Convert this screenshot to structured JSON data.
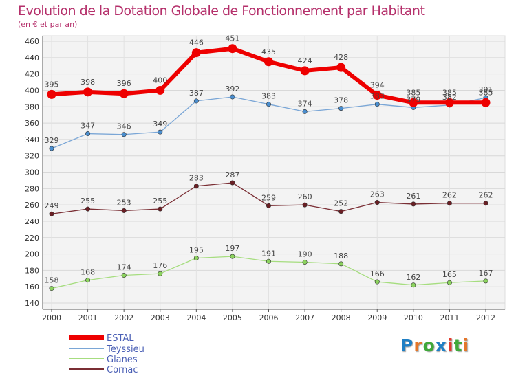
{
  "title": "Evolution de la Dotation Globale de Fonctionnement par Habitant",
  "subtitle": "(en € et par an)",
  "logo": {
    "text": "Proxiti",
    "colors": [
      "#1f7fc4",
      "#e4762a",
      "#3fa83a",
      "#1f7fc4",
      "#e23a2c",
      "#3fa83a",
      "#e4762a"
    ]
  },
  "chart_data": {
    "type": "line",
    "x": [
      "2000",
      "2001",
      "2002",
      "2003",
      "2004",
      "2005",
      "2006",
      "2007",
      "2008",
      "2009",
      "2010",
      "2011",
      "2012"
    ],
    "ylim": [
      140,
      460
    ],
    "yticks": [
      140,
      160,
      180,
      200,
      220,
      240,
      260,
      280,
      300,
      320,
      340,
      360,
      380,
      400,
      420,
      440,
      460
    ],
    "grid": true,
    "legend_position": "bottom-left",
    "series": [
      {
        "name": "ESTAL",
        "color": "#ee0000",
        "values": [
          395,
          398,
          396,
          400,
          446,
          451,
          435,
          424,
          428,
          394,
          385,
          385,
          385
        ]
      },
      {
        "name": "Teyssieu",
        "color": "#7aa6d6",
        "values": [
          329,
          347,
          346,
          349,
          387,
          392,
          383,
          374,
          378,
          383,
          379,
          382,
          391
        ]
      },
      {
        "name": "Glanes",
        "color": "#a6dd7f",
        "values": [
          158,
          168,
          174,
          176,
          195,
          197,
          191,
          190,
          188,
          166,
          162,
          165,
          167
        ]
      },
      {
        "name": "Cornac",
        "color": "#7a2e34",
        "values": [
          249,
          255,
          253,
          255,
          283,
          287,
          259,
          260,
          252,
          263,
          261,
          262,
          262
        ]
      }
    ]
  }
}
